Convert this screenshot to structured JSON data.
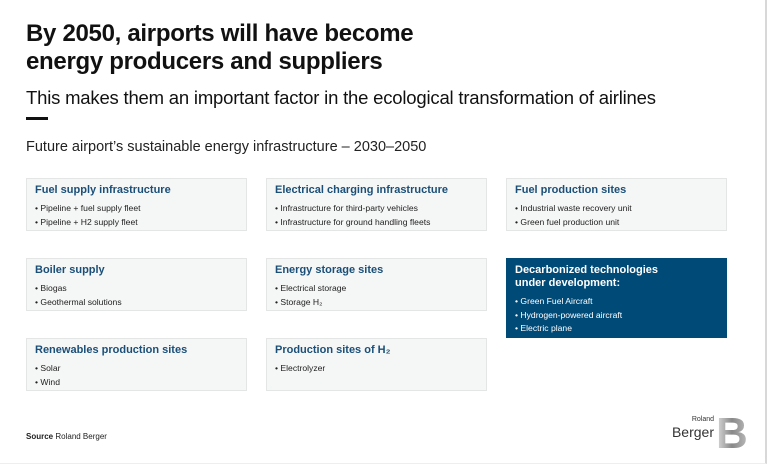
{
  "title": {
    "line1": "By 2050, airports will have become",
    "line2": "energy producers and suppliers"
  },
  "subtitle": "This makes them an important factor in the ecological transformation of airlines",
  "section_title": "Future airport’s sustainable energy infrastructure – 2030–2050",
  "boxes": [
    {
      "title": "Fuel supply infrastructure",
      "items": [
        "Pipeline + fuel supply fleet",
        "Pipeline + H2 supply fleet"
      ]
    },
    {
      "title": "Electrical charging infrastructure",
      "items": [
        "Infrastructure for third-party vehicles",
        "Infrastructure for ground handling fleets"
      ]
    },
    {
      "title": "Fuel production sites",
      "items": [
        "Industrial waste recovery unit",
        "Green fuel production unit"
      ]
    },
    {
      "title": "Boiler supply",
      "items": [
        "Biogas",
        "Geothermal solutions"
      ]
    },
    {
      "title": "Energy storage sites",
      "items": [
        "Electrical storage",
        "Storage H₂"
      ]
    },
    {
      "title": "Decarbonized technologies under development:",
      "items": [
        "Green Fuel Aircraft",
        "Hydrogen-powered aircraft",
        "Electric plane"
      ]
    },
    {
      "title": "Renewables production sites",
      "items": [
        "Solar",
        "Wind"
      ]
    },
    {
      "title": "Production sites of H₂",
      "items": [
        "Electrolyzer"
      ]
    }
  ],
  "source": {
    "label": "Source",
    "value": "Roland Berger"
  },
  "logo": {
    "line1": "Roland",
    "line2": "Berger",
    "mark": "B"
  },
  "colors": {
    "accent": "#004a78",
    "title_blue": "#1b4f78",
    "box_bg": "#f5f6f6"
  }
}
